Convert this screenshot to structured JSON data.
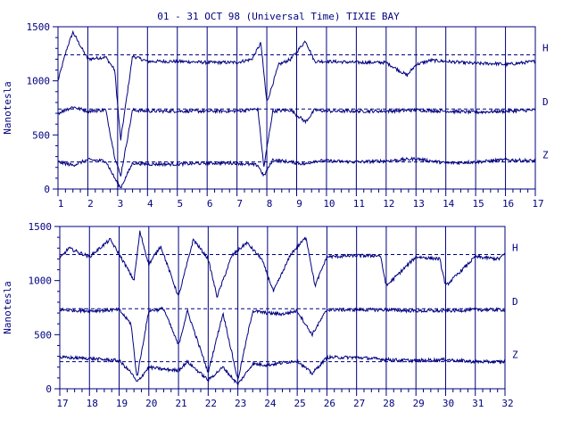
{
  "colors": {
    "ink": "#000080",
    "background": "#ffffff"
  },
  "title": "01 - 31 OCT 98 (Universal Time) TIXIE BAY",
  "chart_data": [
    {
      "type": "line",
      "title": "01 - 31 OCT 98 (Universal Time) TIXIE BAY",
      "ylabel": "Nanotesla",
      "xlabel": "",
      "x_tick_labels": [
        "1",
        "2",
        "3",
        "4",
        "5",
        "6",
        "7",
        "8",
        "9",
        "10",
        "11",
        "12",
        "13",
        "14",
        "15",
        "16",
        "17"
      ],
      "x_range_days": [
        1,
        17
      ],
      "y_tick_labels": [
        "0",
        "500",
        "1000",
        "1500"
      ],
      "ylim": [
        0,
        1500
      ],
      "grid": true,
      "component_labels": [
        "H",
        "D",
        "Z"
      ],
      "baselines": [
        1240,
        740,
        250
      ],
      "series": [
        {
          "name": "H",
          "x": [
            1,
            1.3,
            1.5,
            2,
            2.6,
            2.9,
            3.1,
            3.5,
            4,
            5,
            6,
            7,
            7.5,
            7.8,
            8,
            8.4,
            8.8,
            9.3,
            9.6,
            10,
            11,
            12,
            12.7,
            13,
            13.5,
            14,
            15,
            15.7,
            16,
            17
          ],
          "values": [
            1000,
            1300,
            1450,
            1200,
            1220,
            1100,
            450,
            1230,
            1180,
            1180,
            1170,
            1170,
            1200,
            1350,
            800,
            1150,
            1200,
            1370,
            1180,
            1180,
            1170,
            1170,
            1050,
            1150,
            1190,
            1180,
            1160,
            1160,
            1150,
            1180
          ]
        },
        {
          "name": "D",
          "x": [
            1,
            1.5,
            2,
            2.6,
            2.9,
            3.1,
            3.5,
            4,
            5,
            6,
            7,
            7.7,
            7.9,
            8.2,
            8.8,
            9.3,
            9.6,
            10,
            11,
            12,
            13,
            14,
            15,
            16,
            17
          ],
          "values": [
            700,
            760,
            720,
            730,
            300,
            120,
            730,
            720,
            720,
            720,
            720,
            740,
            200,
            720,
            730,
            620,
            730,
            720,
            720,
            720,
            730,
            720,
            710,
            720,
            730
          ]
        },
        {
          "name": "Z",
          "x": [
            1,
            1.5,
            2,
            2.6,
            2.9,
            3.1,
            3.5,
            4,
            5,
            6,
            7,
            7.7,
            7.9,
            8.2,
            8.8,
            9.3,
            9.6,
            10,
            11,
            12,
            13,
            14,
            15,
            16,
            17
          ],
          "values": [
            250,
            220,
            270,
            260,
            100,
            10,
            240,
            230,
            230,
            240,
            240,
            220,
            120,
            270,
            250,
            230,
            260,
            260,
            250,
            260,
            280,
            240,
            250,
            270,
            260
          ]
        }
      ]
    },
    {
      "type": "line",
      "title": "",
      "ylabel": "Nanotesla",
      "xlabel": "",
      "x_tick_labels": [
        "17",
        "18",
        "19",
        "20",
        "21",
        "22",
        "23",
        "24",
        "25",
        "26",
        "27",
        "28",
        "29",
        "30",
        "31",
        "32"
      ],
      "x_range_days": [
        17,
        32
      ],
      "y_tick_labels": [
        "0",
        "500",
        "1000",
        "1500"
      ],
      "ylim": [
        0,
        1500
      ],
      "grid": true,
      "component_labels": [
        "H",
        "D",
        "Z"
      ],
      "baselines": [
        1240,
        740,
        250
      ],
      "series": [
        {
          "name": "H",
          "x": [
            17,
            17.3,
            18,
            18.7,
            19.2,
            19.5,
            19.7,
            20,
            20.4,
            21,
            21.5,
            22,
            22.3,
            22.8,
            23.3,
            23.8,
            24.2,
            24.8,
            25.3,
            25.6,
            26,
            27,
            27.8,
            28,
            29,
            29.8,
            30,
            31,
            31.8,
            32
          ],
          "values": [
            1200,
            1300,
            1220,
            1380,
            1150,
            1000,
            1450,
            1150,
            1320,
            850,
            1380,
            1200,
            850,
            1230,
            1350,
            1200,
            900,
            1250,
            1400,
            950,
            1220,
            1230,
            1230,
            950,
            1220,
            1200,
            950,
            1220,
            1200,
            1250
          ]
        },
        {
          "name": "D",
          "x": [
            17,
            18,
            19,
            19.4,
            19.6,
            20,
            20.5,
            21,
            21.3,
            22,
            22.5,
            23,
            23.5,
            24,
            24.5,
            25,
            25.5,
            26,
            27,
            28,
            29,
            30,
            31,
            32
          ],
          "values": [
            730,
            720,
            730,
            600,
            100,
            720,
            740,
            400,
            720,
            150,
            700,
            80,
            720,
            700,
            690,
            720,
            500,
            730,
            730,
            730,
            720,
            720,
            730,
            730
          ]
        },
        {
          "name": "Z",
          "x": [
            17,
            18,
            19,
            19.4,
            19.6,
            20,
            20.5,
            21,
            21.3,
            22,
            22.5,
            23,
            23.5,
            24,
            24.5,
            25,
            25.5,
            26,
            27,
            28,
            29,
            30,
            31,
            32
          ],
          "values": [
            290,
            280,
            260,
            150,
            60,
            200,
            180,
            170,
            250,
            80,
            200,
            40,
            230,
            220,
            240,
            260,
            140,
            290,
            290,
            270,
            260,
            270,
            250,
            250
          ]
        }
      ]
    }
  ]
}
